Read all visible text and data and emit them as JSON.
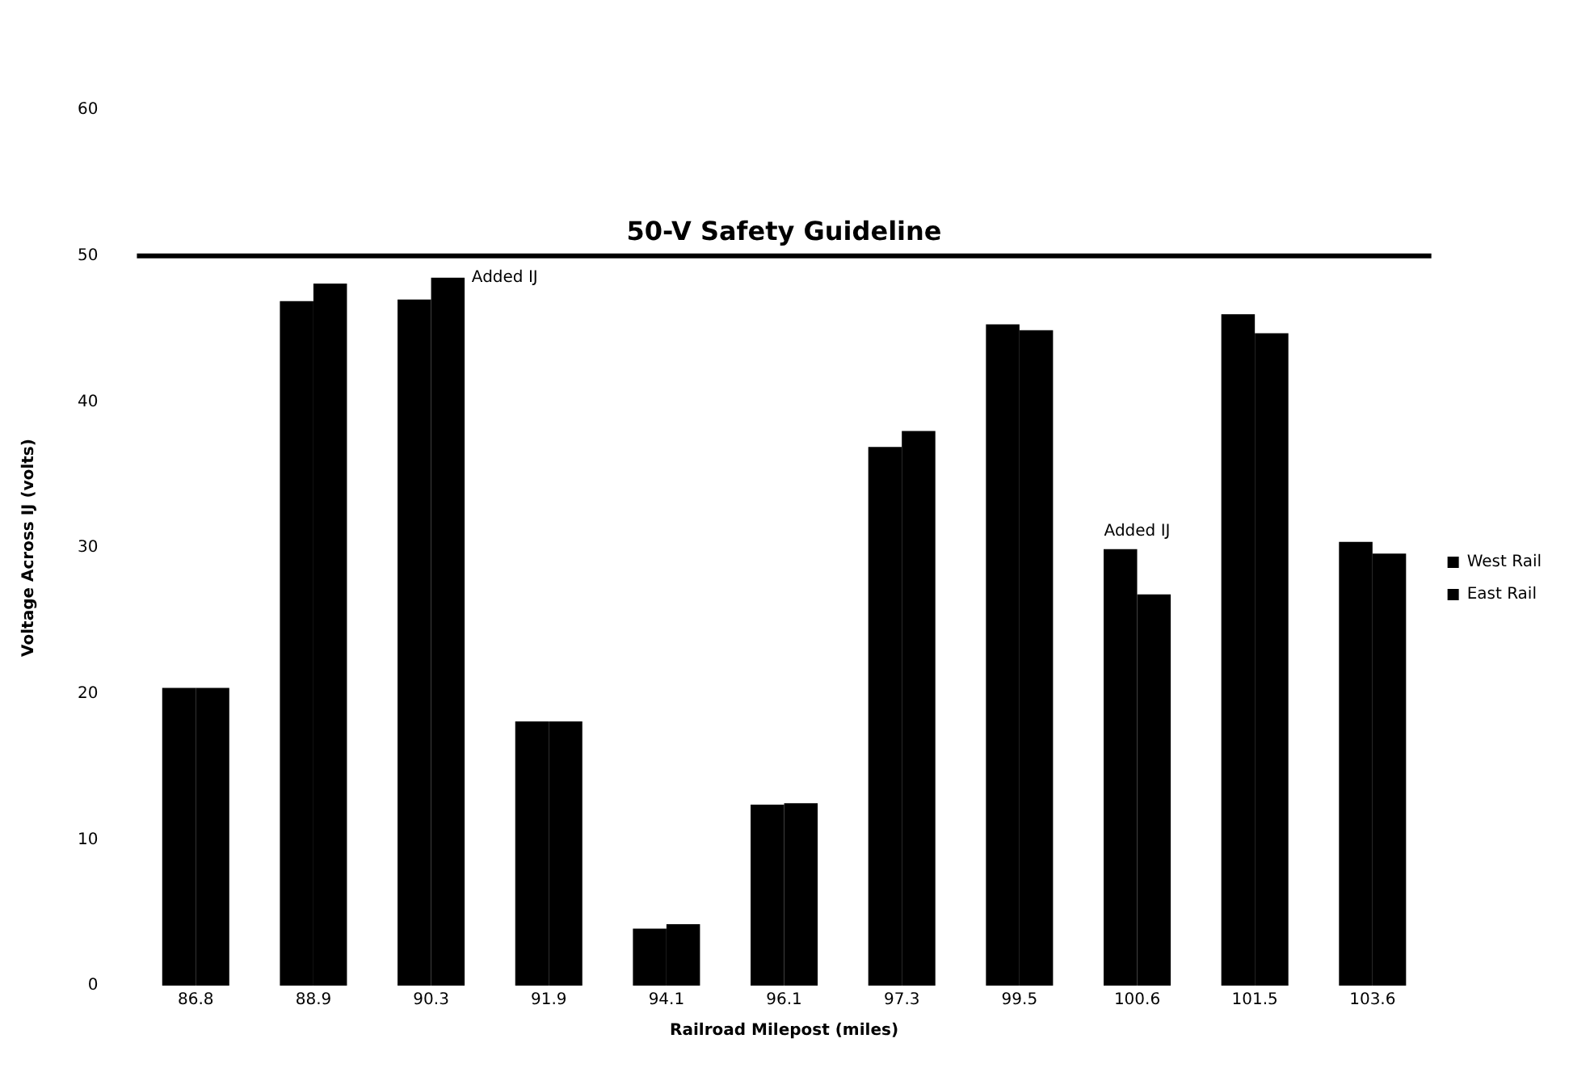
{
  "chart_data": {
    "type": "bar",
    "xlabel": "Railroad Milepost (miles)",
    "ylabel": "Voltage Across IJ (volts)",
    "categories": [
      "86.8",
      "88.9",
      "90.3",
      "91.9",
      "94.1",
      "96.1",
      "97.3",
      "99.5",
      "100.6",
      "101.5",
      "103.6"
    ],
    "series": [
      {
        "name": "West Rail",
        "color": "#000000",
        "values": [
          20.4,
          46.9,
          47,
          18.1,
          3.9,
          12.4,
          36.9,
          45.3,
          29.9,
          46,
          30.4
        ]
      },
      {
        "name": "East Rail",
        "color": "#000000",
        "values": [
          20.4,
          48.1,
          48.5,
          18.1,
          4.2,
          12.5,
          38,
          44.9,
          26.8,
          44.7,
          29.6
        ]
      }
    ],
    "ylim": [
      0,
      60
    ],
    "yticks": [
      0,
      10,
      20,
      30,
      40,
      50,
      60
    ],
    "grid": false,
    "legend": "right",
    "ref_lines": [
      {
        "axis": "y",
        "value": 50,
        "label": "50-V Safety Guideline",
        "color": "#000000"
      }
    ],
    "annotations": [
      {
        "text": "Added IJ",
        "x": "90.3",
        "y": 48.5
      },
      {
        "text": "Added IJ",
        "x": "100.6",
        "y": 29.9
      }
    ]
  }
}
